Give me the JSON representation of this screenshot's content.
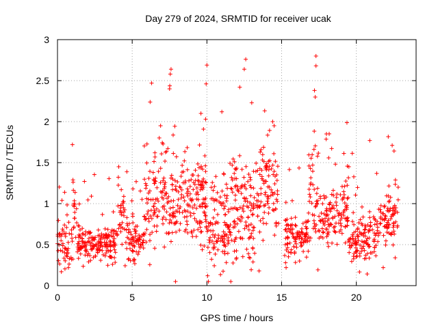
{
  "chart_data": {
    "type": "scatter",
    "title": "Day 279 of 2024, SRMTID for receiver ucak",
    "xlabel": "GPS time / hours",
    "ylabel": "SRMTID / TECUs",
    "xlim": [
      0,
      24
    ],
    "ylim": [
      0,
      3
    ],
    "xticks": [
      0,
      5,
      10,
      15,
      20
    ],
    "yticks": [
      0,
      0.5,
      1,
      1.5,
      2,
      2.5,
      3
    ],
    "xtick_labels": [
      "0",
      "5",
      "10",
      "15",
      "20"
    ],
    "ytick_labels": [
      "0",
      "0.5",
      "1",
      "1.5",
      "2",
      "2.5",
      "3"
    ],
    "grid": true,
    "marker": "+",
    "color": "#ff0000",
    "profile": [
      {
        "start": 0.0,
        "end": 1.0,
        "mean": 0.5,
        "spread": 0.3,
        "density": 55
      },
      {
        "start": 1.0,
        "end": 1.3,
        "mean": 0.85,
        "spread": 0.45,
        "density": 60
      },
      {
        "start": 1.3,
        "end": 4.0,
        "mean": 0.52,
        "spread": 0.2,
        "density": 70
      },
      {
        "start": 4.0,
        "end": 4.5,
        "mean": 0.8,
        "spread": 0.4,
        "density": 60
      },
      {
        "start": 4.5,
        "end": 5.8,
        "mean": 0.55,
        "spread": 0.25,
        "density": 60
      },
      {
        "start": 5.8,
        "end": 6.5,
        "mean": 1.0,
        "spread": 0.5,
        "density": 65
      },
      {
        "start": 6.5,
        "end": 8.0,
        "mean": 1.1,
        "spread": 0.6,
        "density": 65
      },
      {
        "start": 8.0,
        "end": 10.0,
        "mean": 1.0,
        "spread": 0.55,
        "density": 70
      },
      {
        "start": 10.0,
        "end": 11.5,
        "mean": 0.7,
        "spread": 0.5,
        "density": 70
      },
      {
        "start": 11.5,
        "end": 13.5,
        "mean": 0.9,
        "spread": 0.6,
        "density": 70
      },
      {
        "start": 13.5,
        "end": 14.8,
        "mean": 1.2,
        "spread": 0.55,
        "density": 65
      },
      {
        "start": 15.2,
        "end": 16.8,
        "mean": 0.6,
        "spread": 0.25,
        "density": 65
      },
      {
        "start": 16.8,
        "end": 17.6,
        "mean": 1.1,
        "spread": 0.7,
        "density": 65
      },
      {
        "start": 17.6,
        "end": 19.5,
        "mean": 0.85,
        "spread": 0.35,
        "density": 65
      },
      {
        "start": 19.5,
        "end": 21.5,
        "mean": 0.6,
        "spread": 0.3,
        "density": 65
      },
      {
        "start": 21.5,
        "end": 22.8,
        "mean": 0.8,
        "spread": 0.35,
        "density": 60
      }
    ],
    "highlights": [
      {
        "x": 7.6,
        "y": 2.64
      },
      {
        "x": 7.55,
        "y": 2.58
      },
      {
        "x": 10.0,
        "y": 2.69
      },
      {
        "x": 12.6,
        "y": 2.76
      },
      {
        "x": 12.5,
        "y": 2.64
      },
      {
        "x": 17.3,
        "y": 2.8
      },
      {
        "x": 17.3,
        "y": 2.68
      },
      {
        "x": 12.2,
        "y": 2.42
      },
      {
        "x": 6.3,
        "y": 2.47
      },
      {
        "x": 7.5,
        "y": 2.4
      },
      {
        "x": 9.95,
        "y": 2.46
      },
      {
        "x": 17.2,
        "y": 2.38
      },
      {
        "x": 6.2,
        "y": 2.24
      },
      {
        "x": 13.0,
        "y": 2.23
      },
      {
        "x": 17.25,
        "y": 2.3
      },
      {
        "x": 14.4,
        "y": 2.0
      },
      {
        "x": 14.5,
        "y": 1.95
      },
      {
        "x": 1.0,
        "y": 1.72
      },
      {
        "x": 20.9,
        "y": 1.77
      },
      {
        "x": 22.4,
        "y": 1.71
      },
      {
        "x": 4.1,
        "y": 1.45
      },
      {
        "x": 7.9,
        "y": 0.05
      },
      {
        "x": 10.1,
        "y": 0.05
      },
      {
        "x": 11.6,
        "y": 0.05
      },
      {
        "x": 10.05,
        "y": 0.12
      },
      {
        "x": 0.3,
        "y": 1.04
      },
      {
        "x": 18.0,
        "y": 1.85
      },
      {
        "x": 19.5,
        "y": 1.45
      },
      {
        "x": 21.8,
        "y": 0.22
      },
      {
        "x": 22.6,
        "y": 0.34
      },
      {
        "x": 22.8,
        "y": 1.2
      },
      {
        "x": 6.9,
        "y": 1.95
      },
      {
        "x": 9.6,
        "y": 2.1
      },
      {
        "x": 11.0,
        "y": 2.12
      },
      {
        "x": 15.3,
        "y": 0.22
      },
      {
        "x": 16.2,
        "y": 0.3
      }
    ]
  }
}
